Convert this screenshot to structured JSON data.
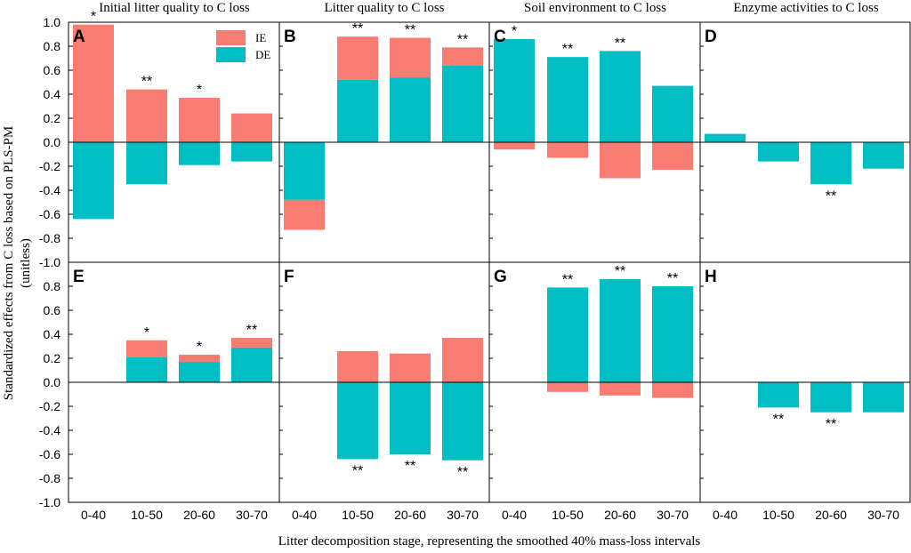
{
  "chart_data": {
    "type": "bar",
    "stacking": "stacked",
    "ylabel": "Standardized effects from C loss based on PLS-PM (unitless)",
    "xlabel": "Litter decomposition stage, representing the smoothed 40% mass-loss intervals",
    "categories": [
      "0-40",
      "10-50",
      "20-60",
      "30-70"
    ],
    "ylim": [
      -1.0,
      1.0
    ],
    "yticks_top_row": [
      "1.0",
      "0.8",
      "0.6",
      "0.4",
      "0.2",
      "0.0",
      "-0.2",
      "-0.4",
      "-0.6",
      "-0.8",
      "-1.0"
    ],
    "yticks_bottom_row": [
      "0.8",
      "0.6",
      "0.4",
      "0.2",
      "0.0",
      "-0.2",
      "-0.4",
      "-0.6",
      "-0.8",
      "-1.0"
    ],
    "legend": {
      "position": "top-right of panel A",
      "entries": [
        {
          "key": "IE",
          "label": "IE",
          "color": "#f97c72"
        },
        {
          "key": "DE",
          "label": "DE",
          "color": "#00bfc4"
        }
      ]
    },
    "column_titles": [
      "Initial litter quality to C loss",
      "Litter quality to C loss",
      "Soil environment to C loss",
      "Enzyme activities to C loss"
    ],
    "panels": [
      {
        "letter": "A",
        "series": [
          {
            "name": "DE",
            "values": [
              -0.64,
              -0.35,
              -0.19,
              -0.16
            ]
          },
          {
            "name": "IE",
            "values": [
              0.98,
              0.44,
              0.37,
              0.24
            ]
          }
        ],
        "significance": [
          "*",
          "**",
          "*",
          ""
        ]
      },
      {
        "letter": "B",
        "series": [
          {
            "name": "DE",
            "values": [
              -0.48,
              0.52,
              0.54,
              0.64
            ]
          },
          {
            "name": "IE",
            "values": [
              -0.25,
              0.36,
              0.33,
              0.15
            ]
          }
        ],
        "significance": [
          "",
          "**",
          "**",
          "**"
        ]
      },
      {
        "letter": "C",
        "series": [
          {
            "name": "DE",
            "values": [
              0.86,
              0.71,
              0.76,
              0.47
            ]
          },
          {
            "name": "IE",
            "values": [
              -0.06,
              -0.13,
              -0.3,
              -0.23
            ]
          }
        ],
        "significance": [
          "*",
          "**",
          "**",
          ""
        ]
      },
      {
        "letter": "D",
        "series": [
          {
            "name": "DE",
            "values": [
              0.07,
              -0.16,
              -0.35,
              -0.22
            ]
          },
          {
            "name": "IE",
            "values": [
              0,
              0,
              0,
              0
            ]
          }
        ],
        "significance": [
          "",
          "",
          "**",
          ""
        ]
      },
      {
        "letter": "E",
        "series": [
          {
            "name": "DE",
            "values": [
              0,
              0.21,
              0.17,
              0.29
            ]
          },
          {
            "name": "IE",
            "values": [
              0,
              0.14,
              0.06,
              0.08
            ]
          }
        ],
        "significance": [
          "",
          "*",
          "*",
          "**"
        ]
      },
      {
        "letter": "F",
        "series": [
          {
            "name": "DE",
            "values": [
              0,
              -0.64,
              -0.6,
              -0.65
            ]
          },
          {
            "name": "IE",
            "values": [
              0,
              0.26,
              0.24,
              0.37
            ]
          }
        ],
        "significance": [
          "",
          "**",
          "**",
          "**"
        ]
      },
      {
        "letter": "G",
        "series": [
          {
            "name": "DE",
            "values": [
              0,
              0.79,
              0.86,
              0.8
            ]
          },
          {
            "name": "IE",
            "values": [
              0,
              -0.08,
              -0.11,
              -0.13
            ]
          }
        ],
        "significance": [
          "",
          "**",
          "**",
          "**"
        ]
      },
      {
        "letter": "H",
        "series": [
          {
            "name": "DE",
            "values": [
              0,
              -0.21,
              -0.25,
              -0.25
            ]
          },
          {
            "name": "IE",
            "values": [
              0,
              0,
              0,
              0
            ]
          }
        ],
        "significance": [
          "",
          "**",
          "**",
          ""
        ]
      }
    ]
  }
}
